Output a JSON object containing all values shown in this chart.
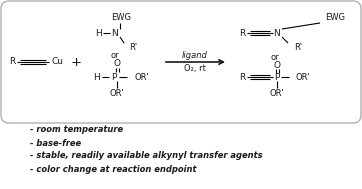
{
  "bg_color": "#ffffff",
  "box_color": "#b0b0b0",
  "text_color": "#1a1a1a",
  "bullet_points": [
    "- room temperature",
    "- base-free",
    "- stable, readily available alkynyl transfer agents",
    "- color change at reaction endpoint"
  ],
  "arrow_label_top": "ligand",
  "arrow_label_bot": "O₂, rt",
  "figsize": [
    3.62,
    1.89
  ],
  "dpi": 100
}
